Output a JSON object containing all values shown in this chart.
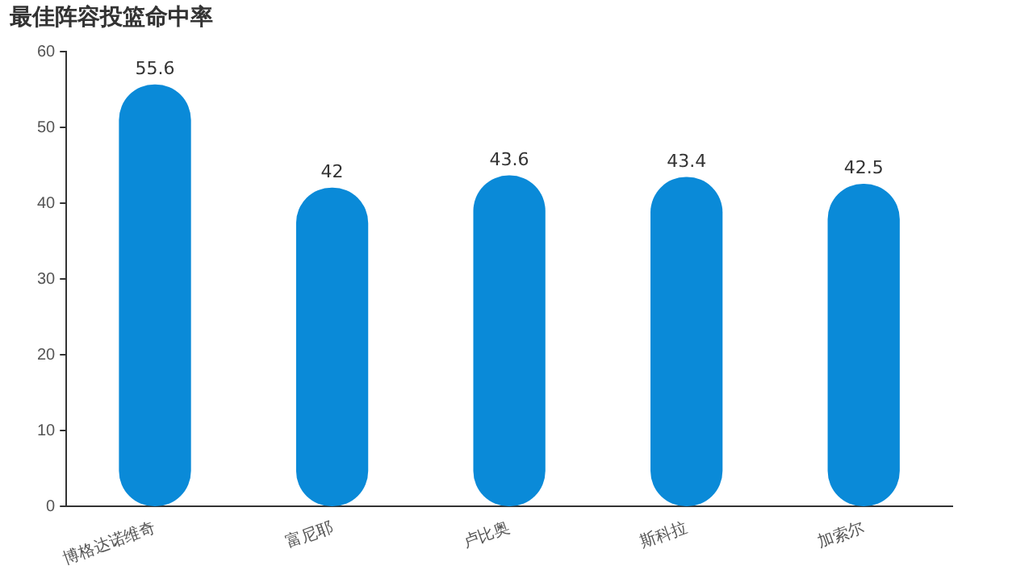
{
  "chart_data": {
    "type": "bar",
    "title": "最佳阵容投篮命中率",
    "categories": [
      "博格达诺维奇",
      "富尼耶",
      "卢比奥",
      "斯科拉",
      "加索尔"
    ],
    "values": [
      55.6,
      42,
      43.6,
      43.4,
      42.5
    ],
    "color": "#0a8ad8",
    "ylim": [
      0,
      60
    ],
    "yticks": [
      0,
      10,
      20,
      30,
      40,
      50,
      60
    ],
    "grid": false,
    "data_labels": true
  }
}
